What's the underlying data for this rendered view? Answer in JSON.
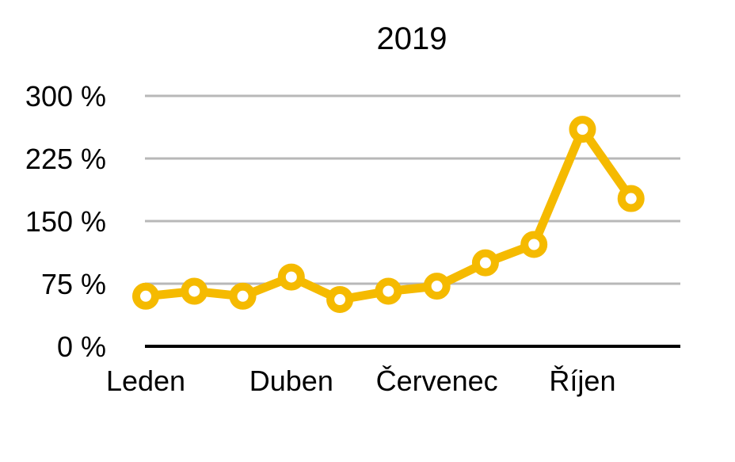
{
  "chart_data": {
    "type": "line",
    "title": "2019",
    "xlabel": "",
    "ylabel": "",
    "x": [
      1,
      2,
      3,
      4,
      5,
      6,
      7,
      8,
      9,
      10,
      11
    ],
    "x_range": [
      1,
      12
    ],
    "x_ticks": [
      {
        "x": 1,
        "label": "Leden"
      },
      {
        "x": 4,
        "label": "Duben"
      },
      {
        "x": 7,
        "label": "Červenec"
      },
      {
        "x": 10,
        "label": "Říjen"
      }
    ],
    "series": [
      {
        "name": "2019",
        "values": [
          60,
          66,
          60,
          83,
          56,
          66,
          72,
          100,
          122,
          260,
          177
        ],
        "color": "#F5BA00"
      }
    ],
    "ylim": [
      0,
      300
    ],
    "y_ticks": [
      {
        "value": 0,
        "label": "0 %"
      },
      {
        "value": 75,
        "label": "75 %"
      },
      {
        "value": 150,
        "label": "150 %"
      },
      {
        "value": 225,
        "label": "225 %"
      },
      {
        "value": 300,
        "label": "300 %"
      }
    ],
    "grid": true,
    "legend": "none"
  }
}
